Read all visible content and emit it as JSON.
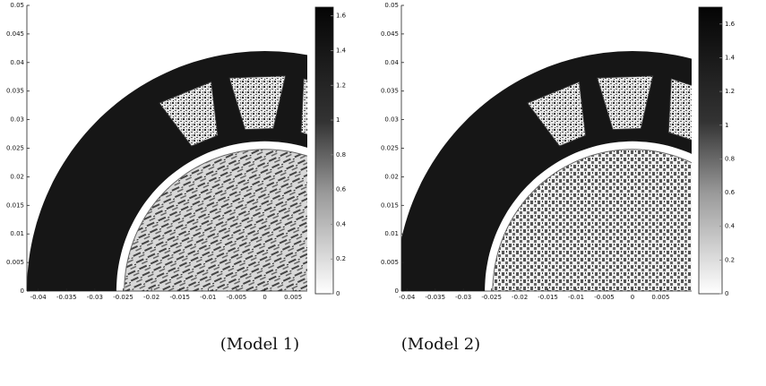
{
  "panels": [
    {
      "xlim": [
        -0.042,
        0.0075
      ],
      "ylim": [
        0,
        0.05
      ],
      "xticks": [
        -0.04,
        -0.035,
        -0.03,
        -0.025,
        -0.02,
        -0.015,
        -0.01,
        -0.005,
        0,
        0.005
      ],
      "yticks": [
        0,
        0.005,
        0.01,
        0.015,
        0.02,
        0.025,
        0.03,
        0.035,
        0.04,
        0.045,
        0.05
      ],
      "colorbar": {
        "lim": [
          0,
          1.65
        ],
        "ticks": [
          0,
          0.2,
          0.4,
          0.6,
          0.8,
          1,
          1.2,
          1.4,
          1.6
        ]
      }
    },
    {
      "xlim": [
        -0.041,
        0.0105
      ],
      "ylim": [
        0,
        0.05
      ],
      "xticks": [
        -0.04,
        -0.035,
        -0.03,
        -0.025,
        -0.02,
        -0.015,
        -0.01,
        -0.005,
        0,
        0.005
      ],
      "yticks": [
        0,
        0.005,
        0.01,
        0.015,
        0.02,
        0.025,
        0.03,
        0.035,
        0.04,
        0.045,
        0.05
      ],
      "colorbar": {
        "lim": [
          0,
          1.7
        ],
        "ticks": [
          0,
          0.2,
          0.4,
          0.6,
          0.8,
          1,
          1.2,
          1.4,
          1.6
        ]
      }
    }
  ],
  "captions": [
    "(Model 1)",
    "(Model 2)"
  ]
}
